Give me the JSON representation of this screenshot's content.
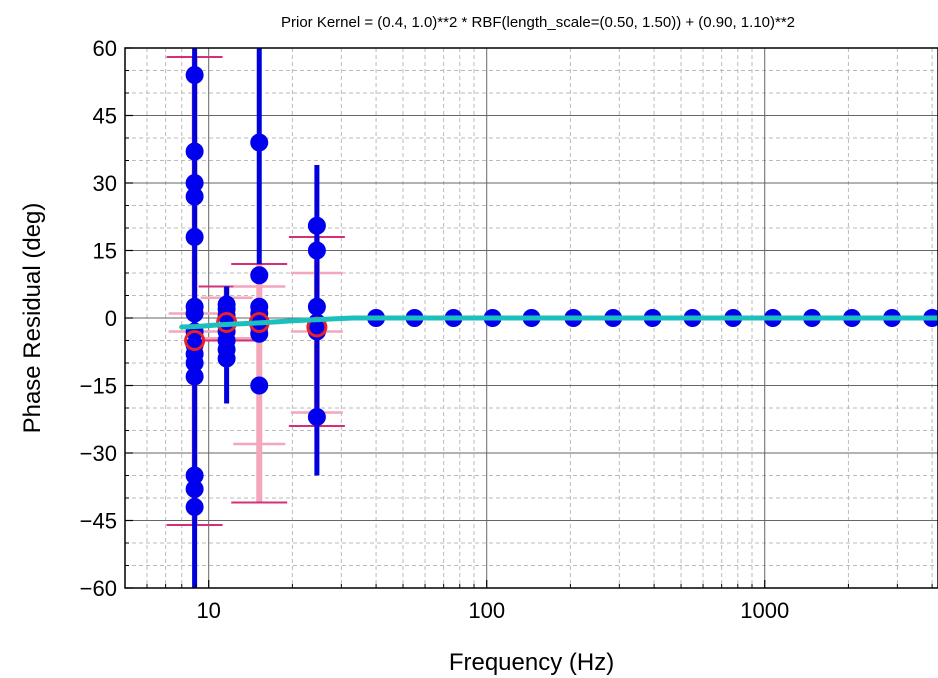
{
  "chart_data": {
    "type": "scatter",
    "title": "Prior Kernel = (0.4, 1.0)**2 * RBF(length_scale=(0.50, 1.50)) + (0.90, 1.10)**2",
    "xlabel": "Frequency (Hz)",
    "ylabel": "Phase Residual (deg)",
    "xscale": "log",
    "xlim": [
      5,
      4200
    ],
    "ylim": [
      -60,
      60
    ],
    "grid": true,
    "x_ticks": [
      10,
      100,
      1000
    ],
    "x_tick_labels": [
      "10",
      "100",
      "1000"
    ],
    "y_ticks": [
      -60,
      -45,
      -30,
      -15,
      0,
      15,
      30,
      45,
      60
    ],
    "y_tick_labels": [
      "−60",
      "−45",
      "−30",
      "−15",
      "0",
      "15",
      "30",
      "45",
      "60"
    ],
    "colors": {
      "measurement": "#0000ee",
      "measurement_error": "#0000dd",
      "mean": "#e8202a",
      "mean_errorbar": "#f4a6bb",
      "mean_errorbar_outer": "#d4307a",
      "gpr_fit": "#1bbfbd",
      "grid_major": "#666666",
      "grid_minor": "#bbbbbb"
    },
    "measurements": [
      {
        "x": 8.9,
        "y": 54
      },
      {
        "x": 8.9,
        "y": 37
      },
      {
        "x": 8.9,
        "y": 30
      },
      {
        "x": 8.9,
        "y": 27
      },
      {
        "x": 8.9,
        "y": 18
      },
      {
        "x": 8.9,
        "y": 2.5
      },
      {
        "x": 8.9,
        "y": 1
      },
      {
        "x": 8.9,
        "y": -3
      },
      {
        "x": 8.9,
        "y": -6
      },
      {
        "x": 8.9,
        "y": -8
      },
      {
        "x": 8.9,
        "y": -10
      },
      {
        "x": 8.9,
        "y": -13
      },
      {
        "x": 8.9,
        "y": -35
      },
      {
        "x": 8.9,
        "y": -38
      },
      {
        "x": 8.9,
        "y": -42
      },
      {
        "x": 11.6,
        "y": 3
      },
      {
        "x": 11.6,
        "y": 2
      },
      {
        "x": 11.6,
        "y": 0.5
      },
      {
        "x": 11.6,
        "y": -3
      },
      {
        "x": 11.6,
        "y": -5
      },
      {
        "x": 11.6,
        "y": -7
      },
      {
        "x": 11.6,
        "y": -9
      },
      {
        "x": 15.2,
        "y": 39
      },
      {
        "x": 15.2,
        "y": 9.5
      },
      {
        "x": 15.2,
        "y": 2.5
      },
      {
        "x": 15.2,
        "y": 1
      },
      {
        "x": 15.2,
        "y": -0.5
      },
      {
        "x": 15.2,
        "y": -2
      },
      {
        "x": 15.2,
        "y": -3.5
      },
      {
        "x": 15.2,
        "y": -15
      },
      {
        "x": 24.5,
        "y": 20.5
      },
      {
        "x": 24.5,
        "y": 15
      },
      {
        "x": 24.5,
        "y": 2.5
      },
      {
        "x": 24.5,
        "y": -1
      },
      {
        "x": 24.5,
        "y": -2
      },
      {
        "x": 24.5,
        "y": -3
      },
      {
        "x": 24.5,
        "y": -22
      },
      {
        "x": 40,
        "y": 0
      },
      {
        "x": 55,
        "y": 0
      },
      {
        "x": 76,
        "y": 0
      },
      {
        "x": 105,
        "y": 0
      },
      {
        "x": 145,
        "y": 0
      },
      {
        "x": 205,
        "y": 0
      },
      {
        "x": 285,
        "y": 0
      },
      {
        "x": 395,
        "y": 0
      },
      {
        "x": 550,
        "y": 0
      },
      {
        "x": 770,
        "y": 0
      },
      {
        "x": 1070,
        "y": 0
      },
      {
        "x": 1480,
        "y": 0
      },
      {
        "x": 2060,
        "y": 0
      },
      {
        "x": 2870,
        "y": 0
      },
      {
        "x": 4000,
        "y": 0
      }
    ],
    "measurement_errors": [
      {
        "x": 8.9,
        "low": -60,
        "high": 60
      },
      {
        "x": 11.6,
        "low": -19,
        "high": 7
      },
      {
        "x": 15.2,
        "low": 12,
        "high": 60
      },
      {
        "x": 24.5,
        "low": -35,
        "high": 34
      }
    ],
    "means": [
      {
        "x": 8.9,
        "y": -5,
        "low": -46,
        "high": 58
      },
      {
        "x": 11.6,
        "y": -1,
        "low": -5,
        "high": 7
      },
      {
        "x": 15.2,
        "y": -1,
        "low": -41,
        "high": 12
      },
      {
        "x": 24.5,
        "y": -2,
        "low": -24,
        "high": 18
      }
    ],
    "inner_caps": [
      {
        "x": 8.9,
        "values": [
          -3,
          1
        ]
      },
      {
        "x": 11.6,
        "values": [
          -4.5,
          4.5
        ]
      },
      {
        "x": 15.2,
        "values": [
          -28,
          7
        ]
      },
      {
        "x": 24.5,
        "values": [
          -21,
          -3,
          10
        ]
      }
    ],
    "gpr_fit": {
      "x": [
        8,
        9,
        10,
        11,
        12,
        14,
        16,
        18,
        20,
        22,
        24,
        26,
        28,
        30,
        33,
        40,
        60,
        100,
        200,
        500,
        1000,
        2000,
        4200
      ],
      "y": [
        -2.0,
        -1.9,
        -1.7,
        -1.5,
        -1.4,
        -1.2,
        -1.0,
        -0.8,
        -0.6,
        -0.5,
        -0.4,
        -0.3,
        -0.2,
        -0.1,
        0.0,
        0.0,
        0.0,
        0.0,
        0.0,
        0.0,
        0.0,
        0.0,
        0.0
      ]
    }
  }
}
